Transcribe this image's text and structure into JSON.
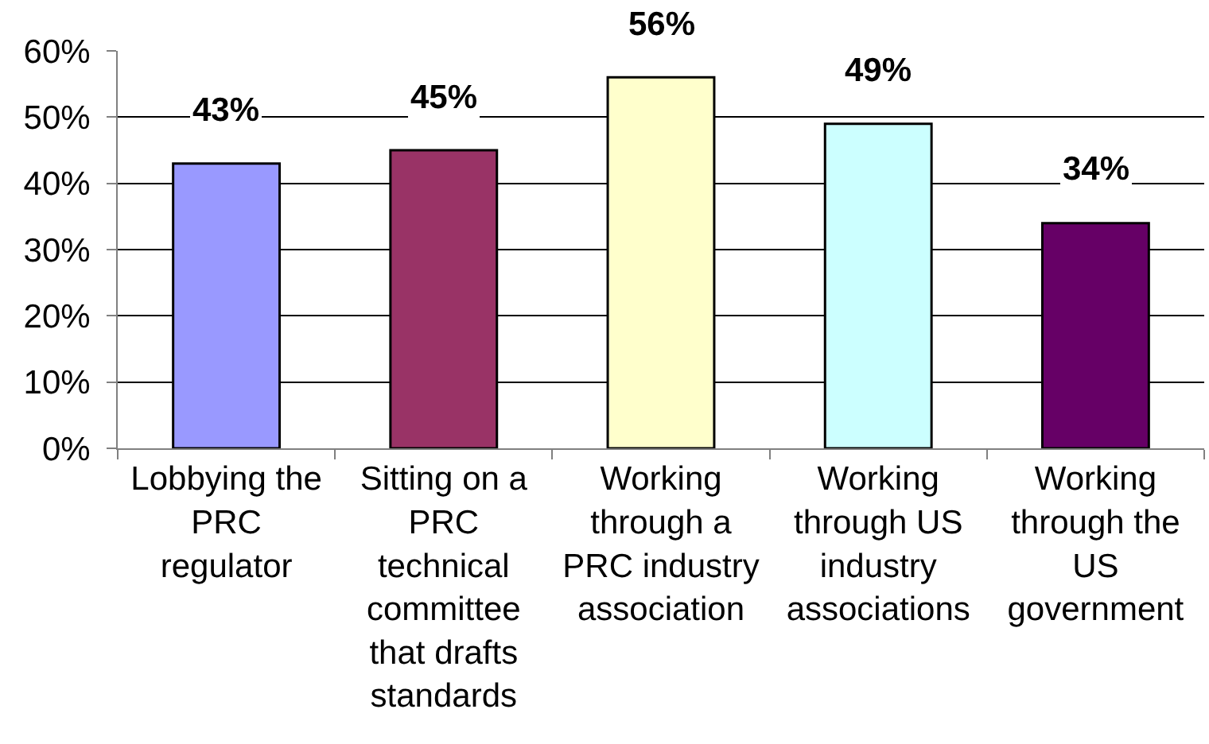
{
  "chart_data": {
    "type": "bar",
    "categories": [
      "Lobbying the PRC regulator",
      "Sitting on a PRC technical committee that drafts standards",
      "Working through a PRC industry association",
      "Working through US industry associations",
      "Working through the US government"
    ],
    "values": [
      43,
      45,
      56,
      49,
      34
    ],
    "colors": [
      "#9999ff",
      "#993366",
      "#ffffcc",
      "#ccffff",
      "#660066"
    ],
    "value_labels": [
      "43%",
      "45%",
      "56%",
      "49%",
      "34%"
    ],
    "ylim": [
      0,
      60
    ],
    "yticks": [
      {
        "value": 0,
        "label": "0%"
      },
      {
        "value": 10,
        "label": "10%"
      },
      {
        "value": 20,
        "label": "20%"
      },
      {
        "value": 30,
        "label": "30%"
      },
      {
        "value": 40,
        "label": "40%"
      },
      {
        "value": 50,
        "label": "50%"
      },
      {
        "value": 60,
        "label": "60%"
      }
    ],
    "grid": "y"
  }
}
